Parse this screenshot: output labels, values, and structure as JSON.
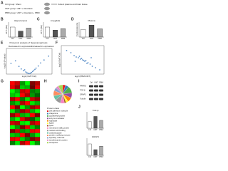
{
  "panel_labels": [
    "A",
    "B",
    "C",
    "D",
    "E",
    "F",
    "G",
    "H",
    "I",
    "J"
  ],
  "design": {
    "lines": [
      "Ctrl group: Sham",
      "UMT group: UMT + Restraint",
      "PBM group: UMT + Restraint + PBM"
    ],
    "collect": "Collect plasma and brain tissue"
  },
  "bar_charts": [
    {
      "title": "Hippocampus",
      "ylabel": "ATP (nM)",
      "categories": [
        "Ctrl",
        "UMT",
        "PBM"
      ],
      "values": [
        1.0,
        0.6,
        0.9
      ],
      "ylim": [
        0,
        1.5
      ],
      "colors": [
        "#ffffff",
        "#555555",
        "#aaaaaa"
      ]
    },
    {
      "title": "Amygdala",
      "ylabel": "ATP (nM)",
      "categories": [
        "Ctrl",
        "UMT",
        "PBM"
      ],
      "values": [
        1.0,
        0.7,
        0.85
      ],
      "ylim": [
        0,
        1.5
      ],
      "colors": [
        "#ffffff",
        "#555555",
        "#aaaaaa"
      ]
    },
    {
      "title": "Plasma",
      "ylabel": "Corticosterone",
      "categories": [
        "Ctrl",
        "UMT",
        "PBM"
      ],
      "values": [
        1.0,
        1.6,
        1.1
      ],
      "ylim": [
        0,
        2
      ],
      "colors": [
        "#ffffff",
        "#555555",
        "#aaaaaa"
      ]
    }
  ],
  "volcano": {
    "title": "Proteomic analysis of hippocampal lysis",
    "down": "Decreased in expression",
    "up": "Increased in expression",
    "xlabel": "log2 (UMT/Ctrl)",
    "ylabel": "-log10 (P value)",
    "xlim": [
      -2,
      2
    ],
    "ylim": [
      0,
      6
    ],
    "color": "#5b8fc9",
    "x": [
      -1.6,
      -1.2,
      -0.9,
      -0.7,
      -0.5,
      -0.3,
      -0.2,
      -0.1,
      0,
      0.1,
      0.2,
      0.3,
      0.4,
      0.6,
      0.8,
      1.0,
      1.3,
      1.7,
      -0.4,
      0.5
    ],
    "y": [
      2.5,
      3.1,
      1.8,
      1.2,
      0.8,
      0.5,
      0.3,
      0.2,
      0.1,
      0.2,
      0.4,
      0.6,
      0.9,
      1.4,
      1.9,
      2.6,
      3.3,
      4.2,
      1.0,
      1.1
    ]
  },
  "scatter": {
    "xlabel": "log2 (PBM/UMT)",
    "ylabel": "log2 (UMT/Ctrl)",
    "xlim": [
      -2,
      2
    ],
    "ylim": [
      -2,
      2
    ],
    "color": "#5b8fc9",
    "x": [
      -1.5,
      -1.1,
      -0.8,
      -0.6,
      -0.4,
      -0.2,
      -0.1,
      0,
      0.1,
      0.2,
      0.3,
      0.5,
      0.7,
      0.9,
      1.2,
      1.6,
      -0.3,
      0.4,
      -0.7,
      0.8
    ],
    "y": [
      1.3,
      1.0,
      0.6,
      0.4,
      0.3,
      0.1,
      0.2,
      0,
      -0.1,
      -0.2,
      -0.1,
      -0.4,
      -0.6,
      -0.9,
      -1.1,
      -1.4,
      0.5,
      -0.5,
      -0.2,
      0.3
    ]
  },
  "heatmap": {
    "values": [
      [
        1,
        0.8,
        -0.6,
        -1,
        0.5,
        0.7
      ],
      [
        0.9,
        0.6,
        -0.8,
        -0.7,
        0.4,
        0.9
      ],
      [
        -1,
        -0.7,
        0.8,
        0.9,
        -0.5,
        -0.6
      ],
      [
        -0.8,
        -0.9,
        1,
        0.7,
        -0.6,
        -0.4
      ],
      [
        0.7,
        1,
        -0.5,
        -0.9,
        0.8,
        0.6
      ],
      [
        -0.6,
        -0.8,
        0.7,
        1,
        -0.9,
        -0.7
      ],
      [
        1,
        0.5,
        -1,
        -0.6,
        0.6,
        0.8
      ],
      [
        -0.9,
        -0.5,
        0.6,
        0.8,
        -0.7,
        -1
      ],
      [
        0.6,
        0.9,
        -0.7,
        -0.8,
        1,
        0.5
      ],
      [
        -0.7,
        -1,
        0.9,
        0.6,
        -0.4,
        -0.8
      ],
      [
        0.8,
        0.7,
        -0.9,
        -1,
        0.7,
        0.9
      ],
      [
        -1,
        -0.6,
        0.5,
        0.9,
        -0.8,
        -0.5
      ],
      [
        0.5,
        0.8,
        -0.6,
        -0.7,
        0.9,
        1
      ],
      [
        -0.8,
        -0.7,
        1,
        0.5,
        -0.6,
        -0.9
      ],
      [
        0.9,
        1,
        -0.8,
        -0.5,
        0.5,
        0.7
      ],
      [
        -0.5,
        -0.9,
        0.7,
        1,
        -1,
        -0.6
      ]
    ]
  },
  "pie": {
    "title": "Protein class",
    "categories": [
      "cell adhesion molecule",
      "chaperone",
      "cytoskeletal protein",
      "enzyme modulator",
      "hydrolase",
      "ligase",
      "lyase",
      "membrane traffic protein",
      "nucleic acid binding",
      "oxidoreductase",
      "protein modifying enzyme",
      "signaling molecule",
      "transfer/carrier protein",
      "transporter"
    ],
    "values": [
      5,
      6,
      12,
      9,
      8,
      4,
      3,
      7,
      10,
      8,
      9,
      6,
      5,
      8
    ],
    "colors": [
      "#e41a1c",
      "#377eb8",
      "#4daf4a",
      "#984ea3",
      "#ff7f00",
      "#ffff33",
      "#a65628",
      "#f781bf",
      "#999999",
      "#66c2a5",
      "#fc8d62",
      "#8da0cb",
      "#e78ac3",
      "#a6d854"
    ]
  },
  "blot": {
    "labels": [
      "PPARG",
      "TGF-β",
      "GRAP1",
      "Tubulin"
    ],
    "lanes": [
      "Ctrl",
      "UMT",
      "PBM"
    ]
  },
  "small_bars": [
    {
      "title": "TGF-β",
      "categories": [
        "Ctrl",
        "UMT",
        "PBM"
      ],
      "values": [
        1.0,
        1.8,
        1.2
      ],
      "ylim": [
        0,
        2.5
      ],
      "colors": [
        "#ffffff",
        "#555555",
        "#aaaaaa"
      ]
    },
    {
      "title": "GRAP1",
      "categories": [
        "Ctrl",
        "UMT",
        "PBM"
      ],
      "values": [
        1.0,
        0.5,
        0.8
      ],
      "ylim": [
        0,
        1.5
      ],
      "colors": [
        "#ffffff",
        "#555555",
        "#aaaaaa"
      ]
    }
  ]
}
